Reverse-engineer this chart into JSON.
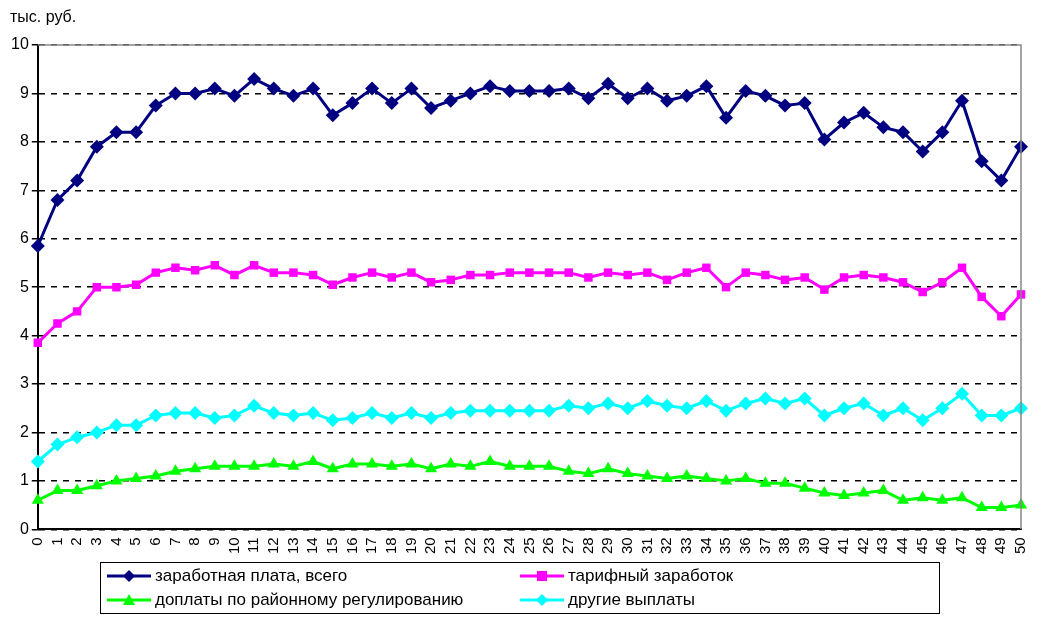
{
  "chart_data": {
    "type": "line",
    "ylabel": "тыс. руб.",
    "categories": [
      "0",
      "1",
      "2",
      "3",
      "4",
      "5",
      "6",
      "7",
      "8",
      "9",
      "10",
      "11",
      "12",
      "13",
      "14",
      "15",
      "16",
      "17",
      "18",
      "19",
      "20",
      "21",
      "22",
      "23",
      "24",
      "25",
      "26",
      "27",
      "28",
      "29",
      "30",
      "31",
      "32",
      "33",
      "34",
      "35",
      "36",
      "37",
      "38",
      "39",
      "40",
      "41",
      "42",
      "43",
      "44",
      "45",
      "46",
      "47",
      "48",
      "49",
      "50"
    ],
    "ylim": [
      0,
      10
    ],
    "yticks": [
      0,
      1,
      2,
      3,
      4,
      5,
      6,
      7,
      8,
      9,
      10
    ],
    "grid": "y",
    "legend": "bottom",
    "line_style": "solid",
    "series": [
      {
        "name": "заработная плата, всего",
        "color": "#000080",
        "marker": "diamond",
        "values": [
          5.85,
          6.8,
          7.2,
          7.9,
          8.2,
          8.2,
          8.75,
          9.0,
          9.0,
          9.1,
          8.95,
          9.3,
          9.1,
          8.95,
          9.1,
          8.55,
          8.8,
          9.1,
          8.8,
          9.1,
          8.7,
          8.85,
          9.0,
          9.15,
          9.05,
          9.05,
          9.05,
          9.1,
          8.9,
          9.2,
          8.9,
          9.1,
          8.85,
          8.95,
          9.15,
          8.5,
          9.05,
          8.95,
          8.75,
          8.8,
          8.05,
          8.4,
          8.6,
          8.3,
          8.2,
          7.8,
          8.2,
          8.85,
          7.6,
          7.2,
          7.9
        ]
      },
      {
        "name": "тарифный заработок",
        "color": "#ff00ff",
        "marker": "square",
        "values": [
          3.85,
          4.25,
          4.5,
          5.0,
          5.0,
          5.05,
          5.3,
          5.4,
          5.35,
          5.45,
          5.25,
          5.45,
          5.3,
          5.3,
          5.25,
          5.05,
          5.2,
          5.3,
          5.2,
          5.3,
          5.1,
          5.15,
          5.25,
          5.25,
          5.3,
          5.3,
          5.3,
          5.3,
          5.2,
          5.3,
          5.25,
          5.3,
          5.15,
          5.3,
          5.4,
          5.0,
          5.3,
          5.25,
          5.15,
          5.2,
          4.95,
          5.2,
          5.25,
          5.2,
          5.1,
          4.9,
          5.1,
          5.4,
          4.8,
          4.4,
          4.85
        ]
      },
      {
        "name": "доплаты по районному регулированию",
        "color": "#00ff00",
        "marker": "triangle",
        "values": [
          0.6,
          0.8,
          0.8,
          0.9,
          1.0,
          1.05,
          1.1,
          1.2,
          1.25,
          1.3,
          1.3,
          1.3,
          1.35,
          1.3,
          1.4,
          1.25,
          1.35,
          1.35,
          1.3,
          1.35,
          1.25,
          1.35,
          1.3,
          1.4,
          1.3,
          1.3,
          1.3,
          1.2,
          1.15,
          1.25,
          1.15,
          1.1,
          1.05,
          1.1,
          1.05,
          1.0,
          1.05,
          0.95,
          0.95,
          0.85,
          0.75,
          0.7,
          0.75,
          0.8,
          0.6,
          0.65,
          0.6,
          0.65,
          0.45,
          0.45,
          0.5
        ]
      },
      {
        "name": "другие выплаты",
        "color": "#00ffff",
        "marker": "diamond",
        "values": [
          1.4,
          1.75,
          1.9,
          2.0,
          2.15,
          2.15,
          2.35,
          2.4,
          2.4,
          2.3,
          2.35,
          2.55,
          2.4,
          2.35,
          2.4,
          2.25,
          2.3,
          2.4,
          2.3,
          2.4,
          2.3,
          2.4,
          2.45,
          2.45,
          2.45,
          2.45,
          2.45,
          2.55,
          2.5,
          2.6,
          2.5,
          2.65,
          2.55,
          2.5,
          2.65,
          2.45,
          2.6,
          2.7,
          2.6,
          2.7,
          2.35,
          2.5,
          2.6,
          2.35,
          2.5,
          2.25,
          2.5,
          2.8,
          2.35,
          2.35,
          2.5
        ]
      }
    ]
  }
}
